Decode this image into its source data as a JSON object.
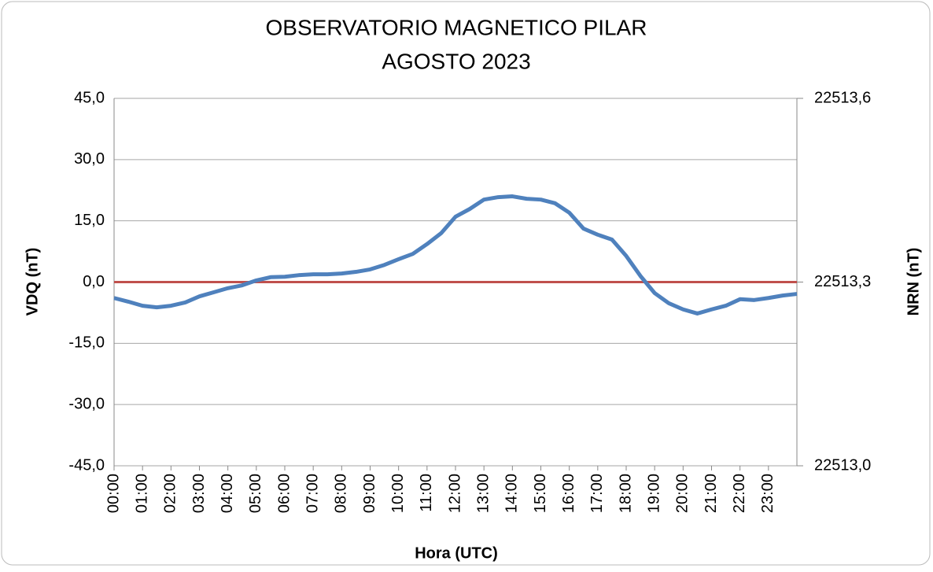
{
  "chart_data": {
    "type": "line",
    "title": "OBSERVATORIO MAGNETICO PILAR",
    "subtitle": "AGOSTO 2023",
    "xlabel": "Hora (UTC)",
    "ylabel": "VDQ (nT)",
    "y2label": "NRN (nT)",
    "xlim": [
      0,
      24
    ],
    "xticks": [
      {
        "value": 0,
        "label": "00:00"
      },
      {
        "value": 1,
        "label": "01:00"
      },
      {
        "value": 2,
        "label": "02:00"
      },
      {
        "value": 3,
        "label": "03:00"
      },
      {
        "value": 4,
        "label": "04:00"
      },
      {
        "value": 5,
        "label": "05:00"
      },
      {
        "value": 6,
        "label": "06:00"
      },
      {
        "value": 7,
        "label": "07:00"
      },
      {
        "value": 8,
        "label": "08:00"
      },
      {
        "value": 9,
        "label": "09:00"
      },
      {
        "value": 10,
        "label": "10:00"
      },
      {
        "value": 11,
        "label": "11:00"
      },
      {
        "value": 12,
        "label": "12:00"
      },
      {
        "value": 13,
        "label": "13:00"
      },
      {
        "value": 14,
        "label": "14:00"
      },
      {
        "value": 15,
        "label": "15:00"
      },
      {
        "value": 16,
        "label": "16:00"
      },
      {
        "value": 17,
        "label": "17:00"
      },
      {
        "value": 18,
        "label": "18:00"
      },
      {
        "value": 19,
        "label": "19:00"
      },
      {
        "value": 20,
        "label": "20:00"
      },
      {
        "value": 21,
        "label": "21:00"
      },
      {
        "value": 22,
        "label": "22:00"
      },
      {
        "value": 23,
        "label": "23:00"
      }
    ],
    "ylim": [
      -45,
      45
    ],
    "yticks": [
      {
        "value": -45,
        "label": "-45,0"
      },
      {
        "value": -30,
        "label": "-30,0"
      },
      {
        "value": -15,
        "label": "-15,0"
      },
      {
        "value": 0,
        "label": "0,0"
      },
      {
        "value": 15,
        "label": "15,0"
      },
      {
        "value": 30,
        "label": "30,0"
      },
      {
        "value": 45,
        "label": "45,0"
      }
    ],
    "y2lim": [
      22513.0,
      22513.6
    ],
    "y2ticks": [
      {
        "value": 22513.0,
        "label": "22513,0"
      },
      {
        "value": 22513.3,
        "label": "22513,3"
      },
      {
        "value": 22513.6,
        "label": "22513,6"
      }
    ],
    "grid": true,
    "series": [
      {
        "color": "#4f81bd",
        "x": [
          0,
          0.5,
          1,
          1.5,
          2,
          2.5,
          3,
          3.5,
          4,
          4.5,
          5,
          5.5,
          6,
          6.5,
          7,
          7.5,
          8,
          8.5,
          9,
          9.5,
          10,
          10.5,
          11,
          11.5,
          12,
          12.5,
          13,
          13.5,
          14,
          14.5,
          15,
          15.5,
          16,
          16.5,
          17,
          17.5,
          18,
          18.5,
          19,
          19.5,
          20,
          20.5,
          21,
          21.5,
          22,
          22.5,
          23,
          23.5,
          24
        ],
        "values": [
          -3.9,
          -4.8,
          -5.8,
          -6.2,
          -5.8,
          -5.0,
          -3.5,
          -2.5,
          -1.5,
          -0.8,
          0.4,
          1.2,
          1.3,
          1.7,
          1.9,
          1.9,
          2.1,
          2.5,
          3.1,
          4.2,
          5.6,
          6.9,
          9.3,
          12.0,
          16.0,
          17.9,
          20.2,
          20.8,
          21.0,
          20.4,
          20.2,
          19.3,
          17.0,
          13.1,
          11.6,
          10.4,
          6.4,
          1.5,
          -2.7,
          -5.2,
          -6.7,
          -7.7,
          -6.7,
          -5.8,
          -4.2,
          -4.4,
          -3.9,
          -3.3,
          -2.9
        ]
      },
      {
        "color": "#c0504d",
        "axis": "y2",
        "x": [
          0,
          24
        ],
        "values": [
          22513.3,
          22513.3
        ]
      }
    ]
  }
}
